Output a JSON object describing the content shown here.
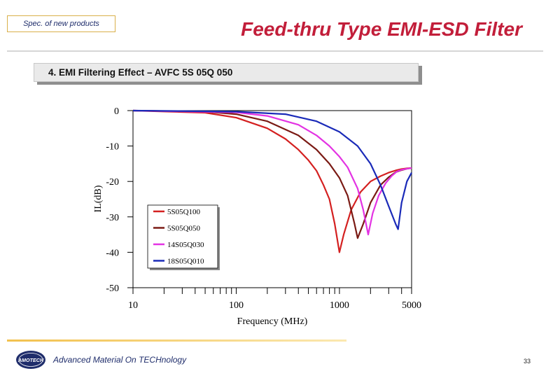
{
  "header": {
    "spec_label": "Spec. of new products",
    "title": "Feed-thru Type EMI-ESD Filter",
    "section": "4. EMI Filtering Effect – AVFC 5S 05Q 050",
    "title_color": "#c21e3a"
  },
  "chart_data": {
    "type": "line",
    "xlabel": "Frequency (MHz)",
    "ylabel": "IL(dB)",
    "xscale": "log",
    "xlim": [
      10,
      5000
    ],
    "ylim": [
      -50,
      0
    ],
    "xticks": [
      10,
      100,
      1000,
      5000
    ],
    "xtick_labels": [
      "10",
      "100",
      "1000",
      "5000"
    ],
    "yticks": [
      0,
      -10,
      -20,
      -30,
      -40,
      -50
    ],
    "ytick_labels": [
      "0",
      "-10",
      "-20",
      "-30",
      "-40",
      "-50"
    ],
    "grid": false,
    "legend_position": "center",
    "series": [
      {
        "name": "5S05Q100",
        "color": "#d42020",
        "x": [
          10,
          50,
          100,
          200,
          300,
          400,
          500,
          600,
          700,
          800,
          900,
          1000,
          1100,
          1300,
          1600,
          2000,
          2500,
          3000,
          3500,
          4000,
          4500,
          5000
        ],
        "y": [
          0,
          -0.6,
          -2,
          -5,
          -8,
          -11,
          -14,
          -17,
          -21,
          -25,
          -32,
          -40,
          -35,
          -28,
          -23,
          -20,
          -18.5,
          -17.5,
          -16.9,
          -16.5,
          -16.3,
          -16.2
        ]
      },
      {
        "name": "5S05Q050",
        "color": "#7a1a14",
        "x": [
          10,
          50,
          100,
          200,
          400,
          600,
          800,
          1000,
          1200,
          1400,
          1500,
          1700,
          2000,
          2500,
          3000,
          3500,
          4000,
          4500,
          5000
        ],
        "y": [
          0,
          -0.3,
          -1,
          -3,
          -7,
          -11,
          -15,
          -19,
          -24,
          -32,
          -36,
          -32,
          -26,
          -21,
          -18.8,
          -17.4,
          -16.8,
          -16.4,
          -16.2
        ]
      },
      {
        "name": "14S05Q030",
        "color": "#e333e3",
        "x": [
          10,
          100,
          200,
          400,
          600,
          800,
          1000,
          1200,
          1500,
          1700,
          1900,
          2100,
          2400,
          2800,
          3200,
          3600,
          4000,
          4500,
          5000
        ],
        "y": [
          0,
          -0.5,
          -1.5,
          -4,
          -7,
          -10,
          -13,
          -16,
          -22,
          -28,
          -35,
          -29,
          -24,
          -20.5,
          -18.5,
          -17.2,
          -16.7,
          -16.4,
          -16.2
        ]
      },
      {
        "name": "18S05Q010",
        "color": "#1a2ab8",
        "x": [
          10,
          100,
          300,
          600,
          1000,
          1500,
          2000,
          2500,
          3000,
          3500,
          3700,
          4000,
          4500,
          5000
        ],
        "y": [
          0,
          -0.3,
          -1,
          -3,
          -6,
          -10,
          -15,
          -21,
          -27,
          -32,
          -33.5,
          -26,
          -20,
          -17.5
        ]
      }
    ]
  },
  "footer": {
    "company": "Advanced Material On TECHnology",
    "logo_text": "AMOTECH",
    "page_number": "33"
  }
}
